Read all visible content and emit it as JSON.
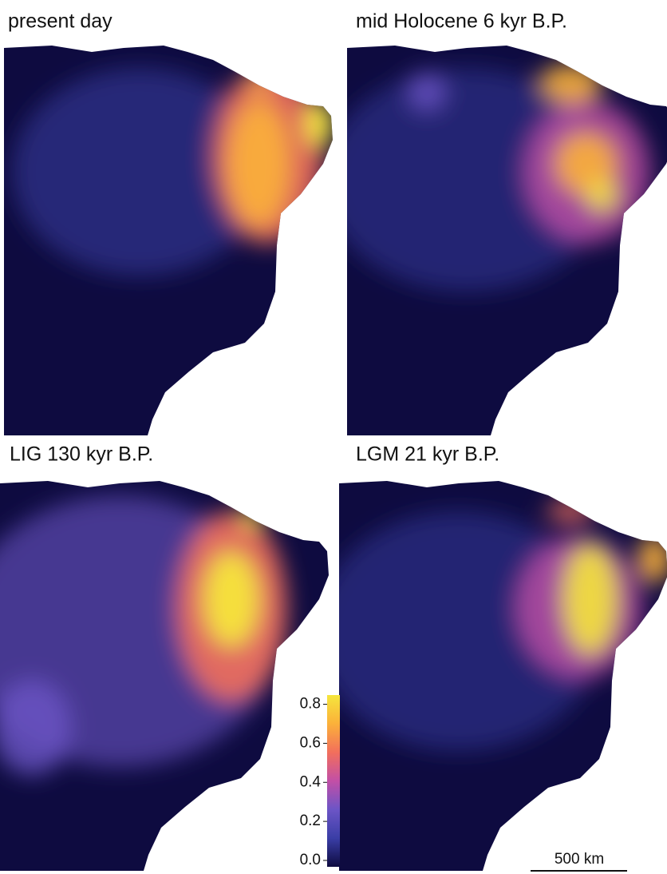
{
  "panels": [
    {
      "title": "present day"
    },
    {
      "title": "mid Holocene 6 kyr B.P."
    },
    {
      "title": "LIG 130 kyr B.P."
    },
    {
      "title": "LGM 21 kyr B.P."
    }
  ],
  "colorbar": {
    "type": "colorbar",
    "clim": [
      0,
      0.88
    ],
    "ticks": [
      {
        "value": 0,
        "label": "0.0"
      },
      0.2,
      0.4,
      0.6,
      0.8
    ],
    "colors": [
      "#0e0b40",
      "#3a3ea6",
      "#6c55c6",
      "#c24fa6",
      "#f26f5c",
      "#fbb13a",
      "#f5e63c"
    ]
  },
  "scale_bar": {
    "label": "500 km"
  }
}
